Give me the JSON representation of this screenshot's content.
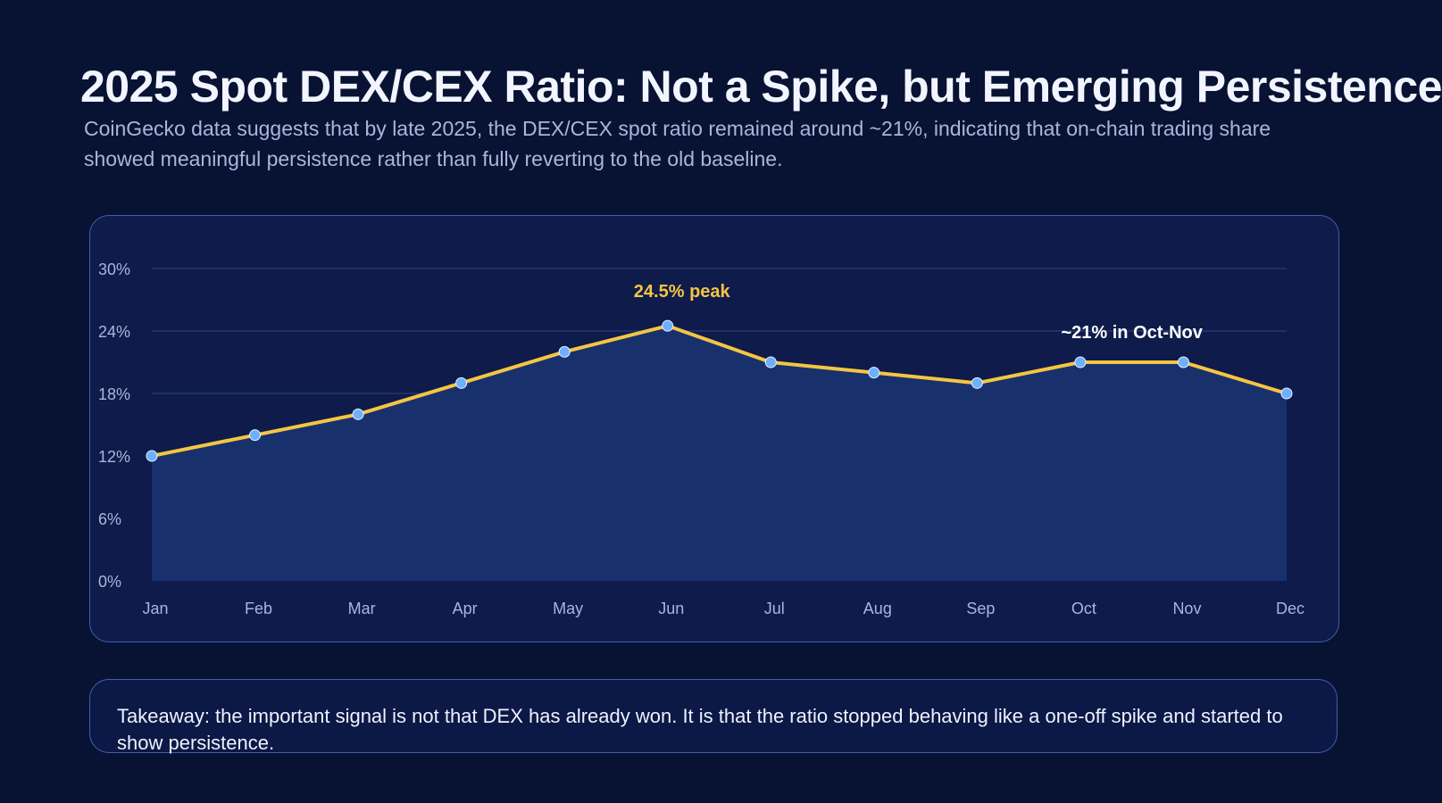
{
  "title": "2025 Spot DEX/CEX Ratio: Not a Spike, but Emerging Persistence",
  "subtitle": "CoinGecko data suggests that by late 2025, the DEX/CEX spot ratio remained around ~21%, indicating that on-chain trading share showed meaningful persistence rather than fully reverting to the old baseline.",
  "takeaway": "Takeaway: the important signal is not that DEX has already won. It is that the ratio stopped behaving like a one-off spike and started to show persistence.",
  "chart_data": {
    "type": "area",
    "categories": [
      "Jan",
      "Feb",
      "Mar",
      "Apr",
      "May",
      "Jun",
      "Jul",
      "Aug",
      "Sep",
      "Oct",
      "Nov",
      "Dec"
    ],
    "values": [
      12,
      14,
      16,
      19,
      22,
      24.5,
      21,
      20,
      19,
      21,
      21,
      18
    ],
    "ylim": [
      0,
      30
    ],
    "yticks": [
      0,
      6,
      12,
      18,
      24,
      30
    ],
    "ytick_labels": [
      "0%",
      "6%",
      "12%",
      "18%",
      "24%",
      "30%"
    ],
    "grid": true,
    "annotations": [
      {
        "text": "24.5% peak",
        "category": "Jun",
        "color": "#f5c542"
      },
      {
        "text": "~21% in Oct-Nov",
        "category": "Oct-Nov",
        "color": "#ffffff"
      }
    ],
    "colors": {
      "line": "#f5c542",
      "fill": "#18316d",
      "marker": "#6cb0ff",
      "grid": "#2c4585",
      "tick": "#a9b6dc"
    }
  }
}
